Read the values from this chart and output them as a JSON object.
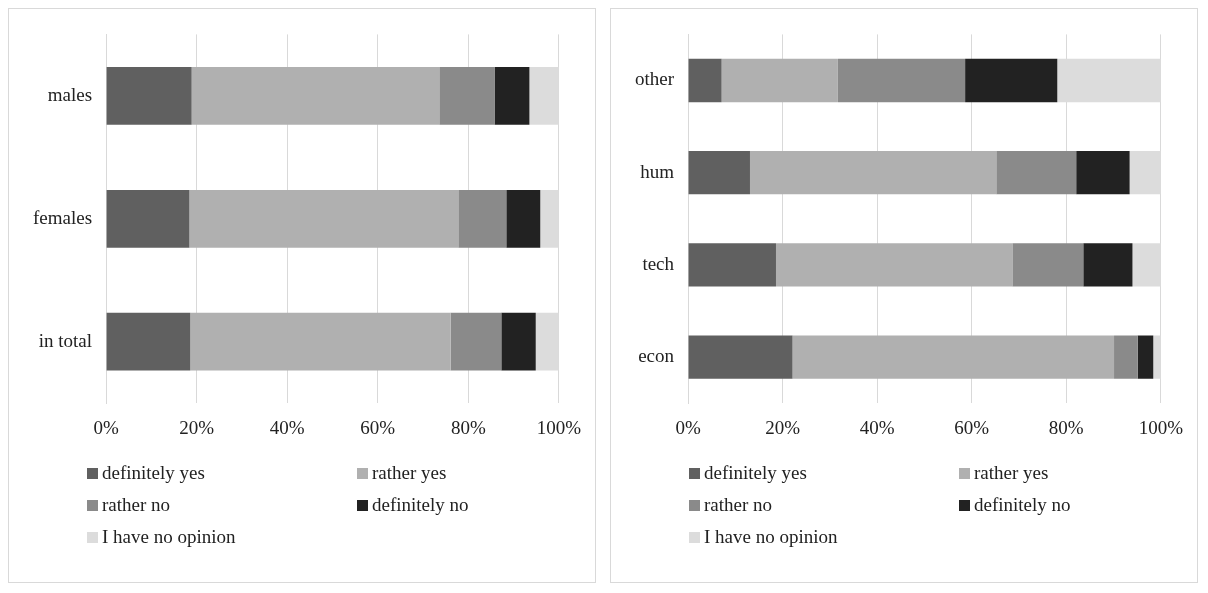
{
  "chart_data": [
    {
      "type": "bar",
      "orientation": "horizontal",
      "stacked": true,
      "categories": [
        "males",
        "females",
        "in total"
      ],
      "series": [
        {
          "name": "definitely yes",
          "color": "#606060",
          "values": [
            18.9,
            18.4,
            18.6
          ]
        },
        {
          "name": "rather yes",
          "color": "#b0b0b0",
          "values": [
            54.7,
            59.4,
            57.5
          ]
        },
        {
          "name": "rather no",
          "color": "#8a8a8a",
          "values": [
            12.2,
            10.6,
            11.2
          ]
        },
        {
          "name": "definitely no",
          "color": "#222222",
          "values": [
            7.7,
            7.5,
            7.6
          ]
        },
        {
          "name": "I have no opinion",
          "color": "#dcdcdc",
          "values": [
            6.5,
            4.1,
            5.1
          ]
        }
      ],
      "xlim": [
        0,
        100
      ],
      "xticks": [
        {
          "value": 0,
          "label": "0%"
        },
        {
          "value": 20,
          "label": "20%"
        },
        {
          "value": 40,
          "label": "40%"
        },
        {
          "value": 60,
          "label": "60%"
        },
        {
          "value": 80,
          "label": "80%"
        },
        {
          "value": 100,
          "label": "100%"
        }
      ],
      "grid": "x",
      "legend": "bottom"
    },
    {
      "type": "bar",
      "orientation": "horizontal",
      "stacked": true,
      "categories": [
        "other",
        "hum",
        "tech",
        "econ"
      ],
      "series": [
        {
          "name": "definitely yes",
          "color": "#606060",
          "values": [
            7.1,
            13.1,
            18.6,
            22.1
          ]
        },
        {
          "name": "rather yes",
          "color": "#b0b0b0",
          "values": [
            24.6,
            52.1,
            50.0,
            68.0
          ]
        },
        {
          "name": "rather no",
          "color": "#8a8a8a",
          "values": [
            26.9,
            16.9,
            15.0,
            5.0
          ]
        },
        {
          "name": "definitely no",
          "color": "#222222",
          "values": [
            19.5,
            11.3,
            10.4,
            3.3
          ]
        },
        {
          "name": "I have no opinion",
          "color": "#dcdcdc",
          "values": [
            21.9,
            6.6,
            6.0,
            1.6
          ]
        }
      ],
      "xlim": [
        0,
        100
      ],
      "xticks": [
        {
          "value": 0,
          "label": "0%"
        },
        {
          "value": 20,
          "label": "20%"
        },
        {
          "value": 40,
          "label": "40%"
        },
        {
          "value": 60,
          "label": "60%"
        },
        {
          "value": 80,
          "label": "80%"
        },
        {
          "value": 100,
          "label": "100%"
        }
      ],
      "grid": "x",
      "legend": "bottom"
    }
  ]
}
